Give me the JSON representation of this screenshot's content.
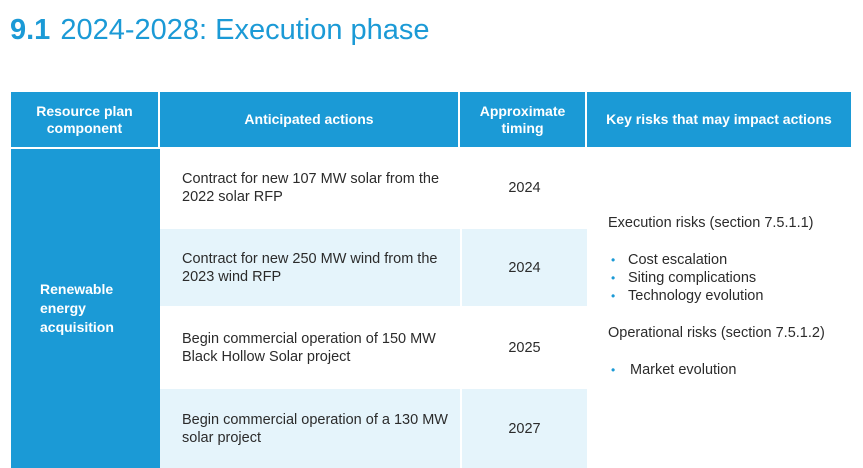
{
  "section": {
    "number": "9.1",
    "title": "2024-2028: Execution phase"
  },
  "table": {
    "headers": [
      "Resource plan component",
      "Anticipated actions",
      "Approximate timing",
      "Key risks that may impact actions"
    ],
    "component": "Renewable energy acquisition",
    "rows": [
      {
        "action": "Contract for new 107 MW solar from the 2022 solar RFP",
        "timing": "2024"
      },
      {
        "action": "Contract for new 250 MW wind from the 2023 wind RFP",
        "timing": "2024"
      },
      {
        "action": "Begin commercial operation of 150 MW Black Hollow Solar project",
        "timing": "2025"
      },
      {
        "action": "Begin commercial operation of a 130 MW solar project",
        "timing": "2027"
      }
    ],
    "risks": {
      "execution_heading": "Execution risks (section 7.5.1.1)",
      "execution_items": [
        "Cost escalation",
        "Siting complications",
        "Technology evolution"
      ],
      "operational_heading": "Operational risks (section 7.5.1.2)",
      "operational_items": [
        "Market evolution"
      ],
      "bullet": "•"
    }
  },
  "colors": {
    "accent": "#1b9ad6",
    "shade": "#e5f4fb",
    "text": "#2b2b2b"
  }
}
